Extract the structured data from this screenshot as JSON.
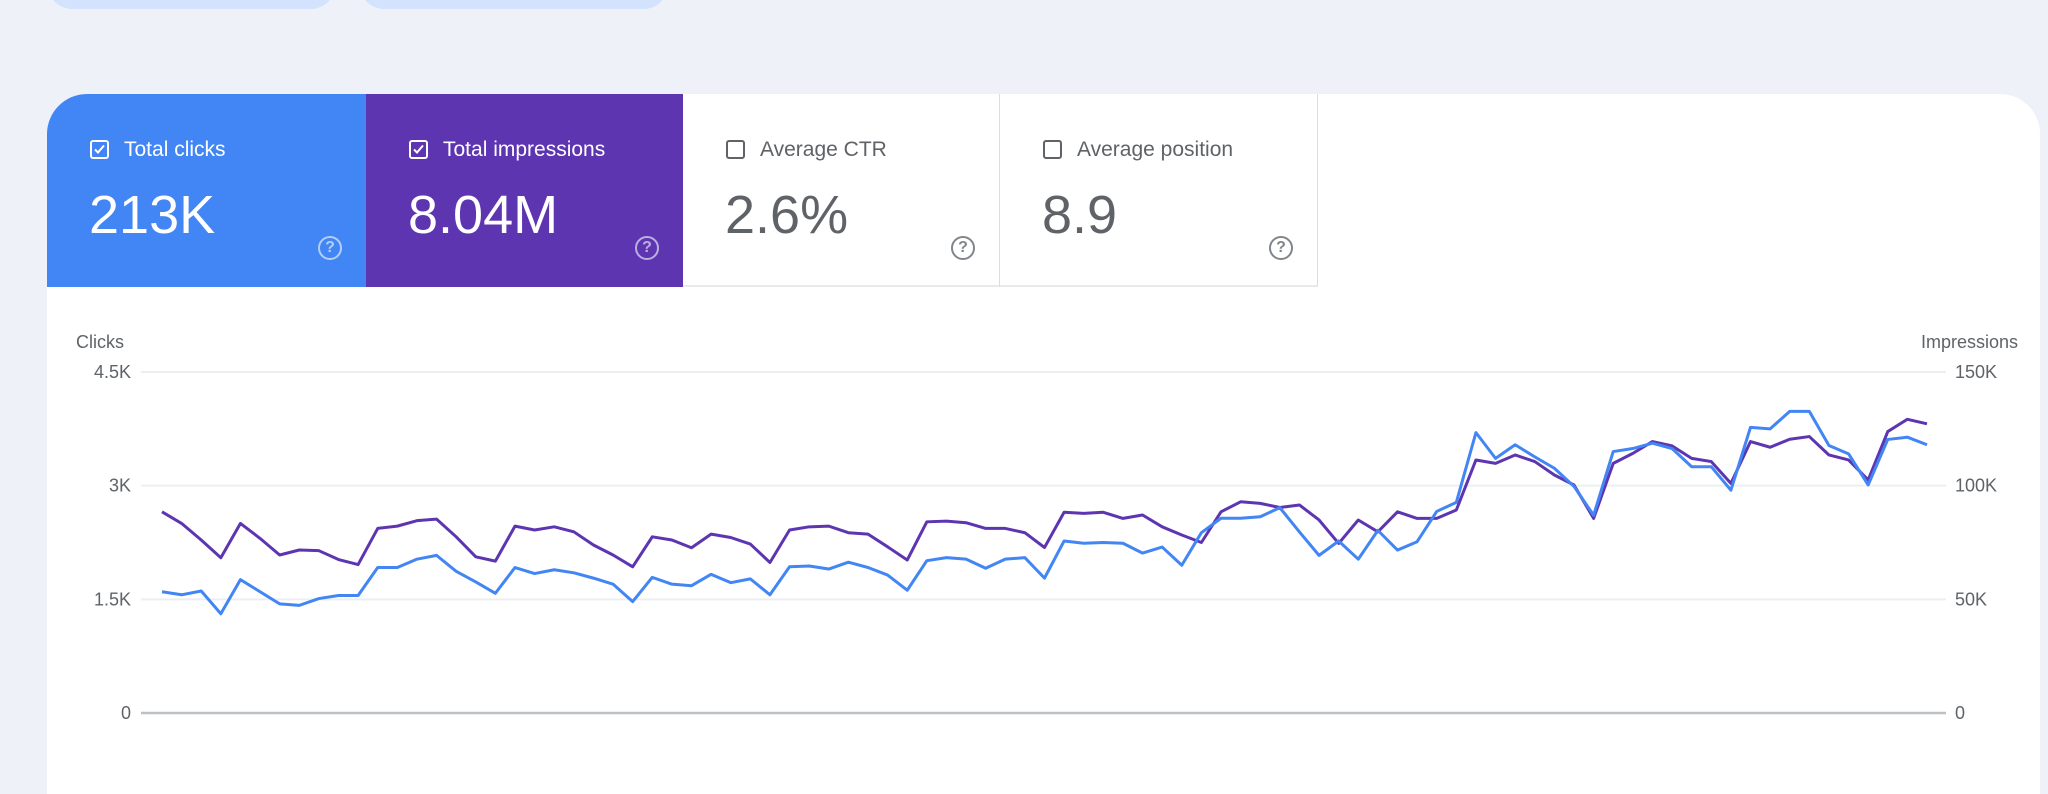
{
  "tabs": [
    {
      "label": "Total clicks",
      "value": "213K",
      "checked": true,
      "color": "#4285f4"
    },
    {
      "label": "Total impressions",
      "value": "8.04M",
      "checked": true,
      "color": "#5e35b1"
    },
    {
      "label": "Average CTR",
      "value": "2.6%",
      "checked": false
    },
    {
      "label": "Average position",
      "value": "8.9",
      "checked": false
    }
  ],
  "help_glyph": "?",
  "chart_data": {
    "type": "line",
    "left_axis": {
      "label": "Clicks",
      "ticks": [
        "0",
        "1.5K",
        "3K",
        "4.5K"
      ],
      "range": [
        0,
        4500
      ]
    },
    "right_axis": {
      "label": "Impressions",
      "ticks": [
        "0",
        "50K",
        "100K",
        "150K"
      ],
      "range": [
        0,
        150000
      ]
    },
    "grid": true,
    "series": [
      {
        "name": "Clicks",
        "axis": "left",
        "color": "#4285f4",
        "values": [
          1600,
          1560,
          1610,
          1310,
          1760,
          1600,
          1440,
          1420,
          1510,
          1550,
          1550,
          1920,
          1920,
          2030,
          2080,
          1870,
          1730,
          1580,
          1920,
          1840,
          1890,
          1850,
          1780,
          1700,
          1470,
          1790,
          1700,
          1680,
          1830,
          1720,
          1770,
          1560,
          1930,
          1940,
          1900,
          1990,
          1920,
          1820,
          1620,
          2010,
          2050,
          2030,
          1910,
          2030,
          2050,
          1780,
          2270,
          2240,
          2250,
          2240,
          2110,
          2190,
          1950,
          2380,
          2570,
          2570,
          2590,
          2710,
          2390,
          2080,
          2270,
          2030,
          2410,
          2150,
          2260,
          2660,
          2780,
          3700,
          3360,
          3540,
          3380,
          3230,
          2990,
          2610,
          3450,
          3490,
          3560,
          3490,
          3250,
          3250,
          2940,
          3770,
          3750,
          3980,
          3980,
          3530,
          3420,
          3010,
          3610,
          3640,
          3540
        ]
      },
      {
        "name": "Impressions",
        "axis": "right",
        "color": "#5e35b1",
        "values": [
          88500,
          83400,
          76100,
          68300,
          83400,
          76800,
          69500,
          71700,
          71400,
          67500,
          65300,
          81200,
          82200,
          84600,
          85300,
          77500,
          68700,
          66800,
          82200,
          80500,
          81900,
          79700,
          73900,
          69500,
          64300,
          77500,
          76100,
          72700,
          78700,
          77200,
          74300,
          66200,
          80500,
          81900,
          82200,
          79300,
          78700,
          73100,
          67300,
          84100,
          84400,
          83700,
          81200,
          81200,
          79300,
          72800,
          88300,
          87800,
          88300,
          85600,
          87100,
          81900,
          78300,
          75000,
          88500,
          92900,
          92200,
          90400,
          91500,
          84900,
          74600,
          84900,
          79700,
          88500,
          85600,
          85600,
          89300,
          111300,
          109800,
          113500,
          110600,
          104700,
          100300,
          85600,
          109800,
          114200,
          119400,
          117500,
          112000,
          110600,
          101000,
          119400,
          116900,
          120400,
          121600,
          113500,
          111300,
          102500,
          123800,
          129200,
          127200
        ]
      }
    ]
  }
}
